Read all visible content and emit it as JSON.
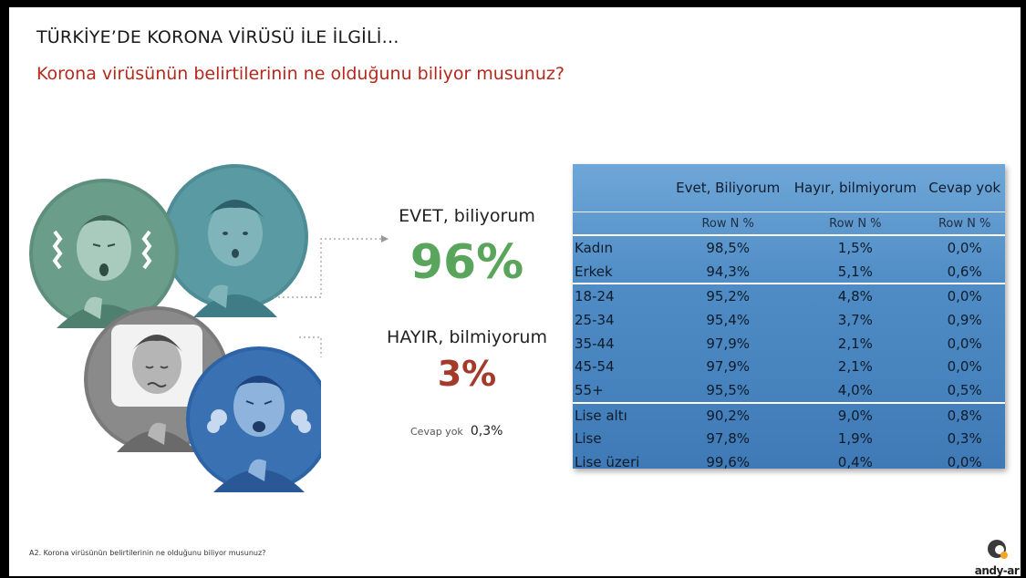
{
  "slide": {
    "title": "TÜRKİYE’DE KORONA VİRÜSÜ İLE İLGİLİ…",
    "question": "Korona virüsünün belirtilerinin ne olduğunu biliyor musunuz?"
  },
  "answers": {
    "yes_label": "EVET, biliyorum",
    "yes_pct": "96%",
    "no_label": "HAYIR, bilmiyorum",
    "no_pct": "3%",
    "cevap_yok_label": "Cevap yok",
    "cevap_yok_value": "0,3%"
  },
  "table": {
    "columns": [
      "Evet, Biliyorum",
      "Hayır, bilmiyorum",
      "Cevap yok"
    ],
    "subheader": [
      "Row N %",
      "Row N %",
      "Row N %"
    ],
    "rows": [
      {
        "label": "Kadın",
        "values": [
          "98,5%",
          "1,5%",
          "0,0%"
        ]
      },
      {
        "label": "Erkek",
        "values": [
          "94,3%",
          "5,1%",
          "0,6%"
        ]
      },
      {
        "label": "18-24",
        "values": [
          "95,2%",
          "4,8%",
          "0,0%"
        ]
      },
      {
        "label": "25-34",
        "values": [
          "95,4%",
          "3,7%",
          "0,9%"
        ]
      },
      {
        "label": "35-44",
        "values": [
          "97,9%",
          "2,1%",
          "0,0%"
        ]
      },
      {
        "label": "45-54",
        "values": [
          "97,9%",
          "2,1%",
          "0,0%"
        ]
      },
      {
        "label": "55+",
        "values": [
          "95,5%",
          "4,0%",
          "0,5%"
        ]
      },
      {
        "label": "Lise altı",
        "values": [
          "90,2%",
          "9,0%",
          "0,8%"
        ]
      },
      {
        "label": "Lise",
        "values": [
          "97,8%",
          "1,9%",
          "0,3%"
        ]
      },
      {
        "label": "Lise üzeri",
        "values": [
          "99,6%",
          "0,4%",
          "0,0%"
        ]
      }
    ]
  },
  "footnote": "A2. Korona virüsünün belirtilerinin ne olduğunu biliyor musunuz?",
  "logo": {
    "letter": "a",
    "text": "andy-ar"
  },
  "colors": {
    "question_red": "#b5291d",
    "yes_green": "#5aa55c",
    "no_red": "#a33a2a",
    "table_blue": "#4f8cc5"
  }
}
